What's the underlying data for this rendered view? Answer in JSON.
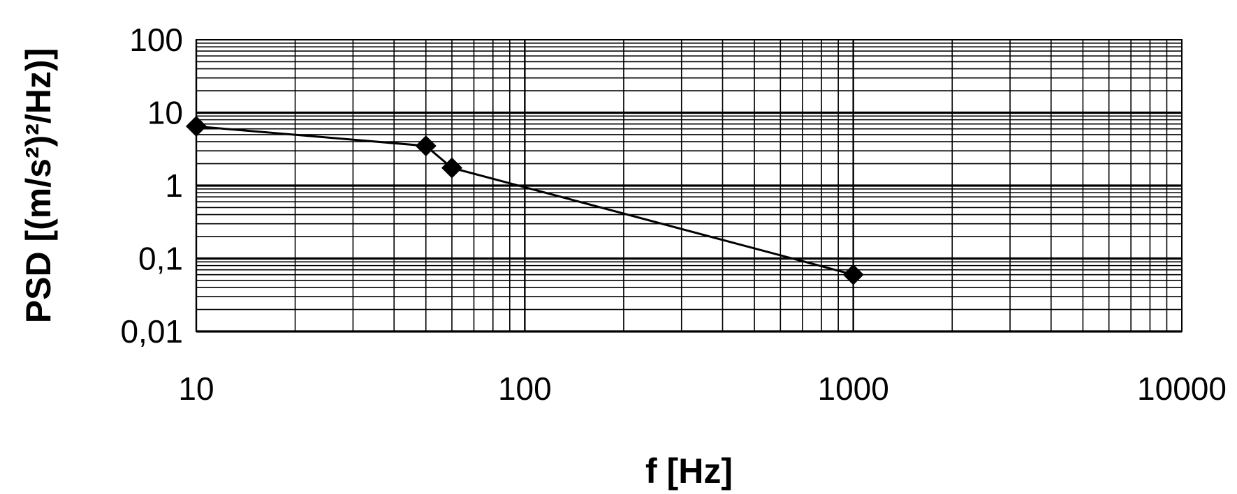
{
  "chart_data": {
    "type": "line",
    "title": "",
    "xlabel": "f [Hz]",
    "ylabel": "PSD [(m/s²)²/Hz)]",
    "x_scale": "log",
    "y_scale": "log",
    "xlim": [
      10,
      10000
    ],
    "ylim": [
      0.01,
      100
    ],
    "x_ticks": [
      10,
      100,
      1000,
      10000
    ],
    "x_tick_labels": [
      "10",
      "100",
      "1000",
      "10000"
    ],
    "y_ticks": [
      0.01,
      0.1,
      1,
      10,
      100
    ],
    "y_tick_labels": [
      "0,01",
      "0,1",
      "1",
      "10",
      "100"
    ],
    "grid": true,
    "legend": "none",
    "series": [
      {
        "marker": "diamond",
        "color": "#000000",
        "points": [
          {
            "x": 10,
            "y": 6.5
          },
          {
            "x": 50,
            "y": 3.5
          },
          {
            "x": 60,
            "y": 1.75
          },
          {
            "x": 1000,
            "y": 0.06
          }
        ]
      }
    ]
  }
}
